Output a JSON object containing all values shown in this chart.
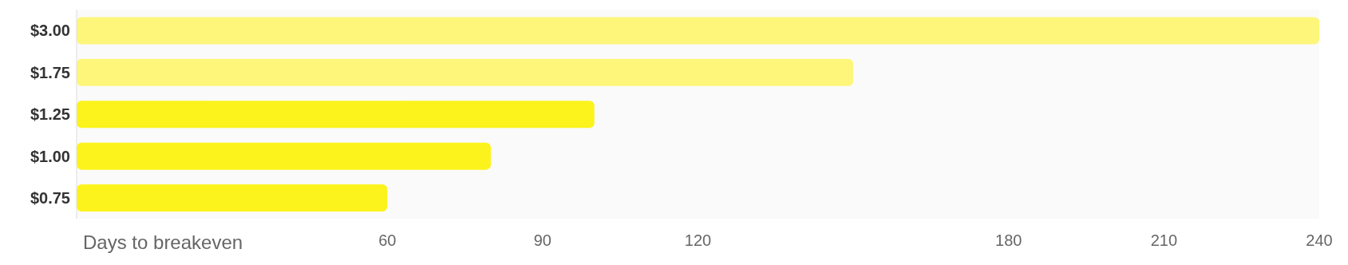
{
  "chart_data": {
    "type": "bar",
    "orientation": "horizontal",
    "xlabel": "Days to breakeven",
    "categories": [
      "$3.00",
      "$1.75",
      "$1.25",
      "$1.00",
      "$0.75"
    ],
    "values": [
      240,
      150,
      100,
      80,
      60
    ],
    "colors": [
      "#fdf67a",
      "#fdf67a",
      "#fcf31c",
      "#fcf31c",
      "#fcf31c"
    ],
    "xlim": [
      0,
      240
    ],
    "xticks": [
      60,
      90,
      120,
      180,
      210,
      240
    ],
    "grid": false
  }
}
